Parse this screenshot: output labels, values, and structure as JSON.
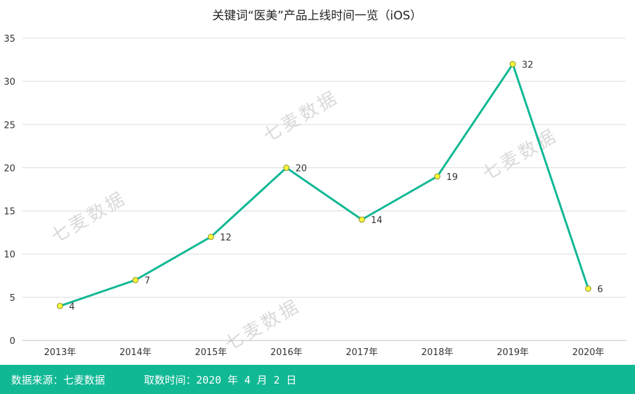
{
  "chart_data": {
    "type": "line",
    "title": "关键词“医美”产品上线时间一览（iOS）",
    "categories": [
      "2013年",
      "2014年",
      "2015年",
      "2016年",
      "2017年",
      "2018年",
      "2019年",
      "2020年"
    ],
    "series": [
      {
        "values": [
          4,
          7,
          12,
          20,
          14,
          19,
          32,
          6
        ]
      }
    ],
    "ylim": [
      0,
      35
    ],
    "yticks": [
      0,
      5,
      10,
      15,
      20,
      25,
      30,
      35
    ],
    "grid": true,
    "data_labels": true,
    "line_color": "#10b894",
    "marker_color": "#f5f53b"
  },
  "watermark": "七麦数据",
  "footer": {
    "source": "数据来源：七麦数据",
    "date": "取数时间：2020 年 4 月 2 日",
    "background": "#10b894"
  }
}
